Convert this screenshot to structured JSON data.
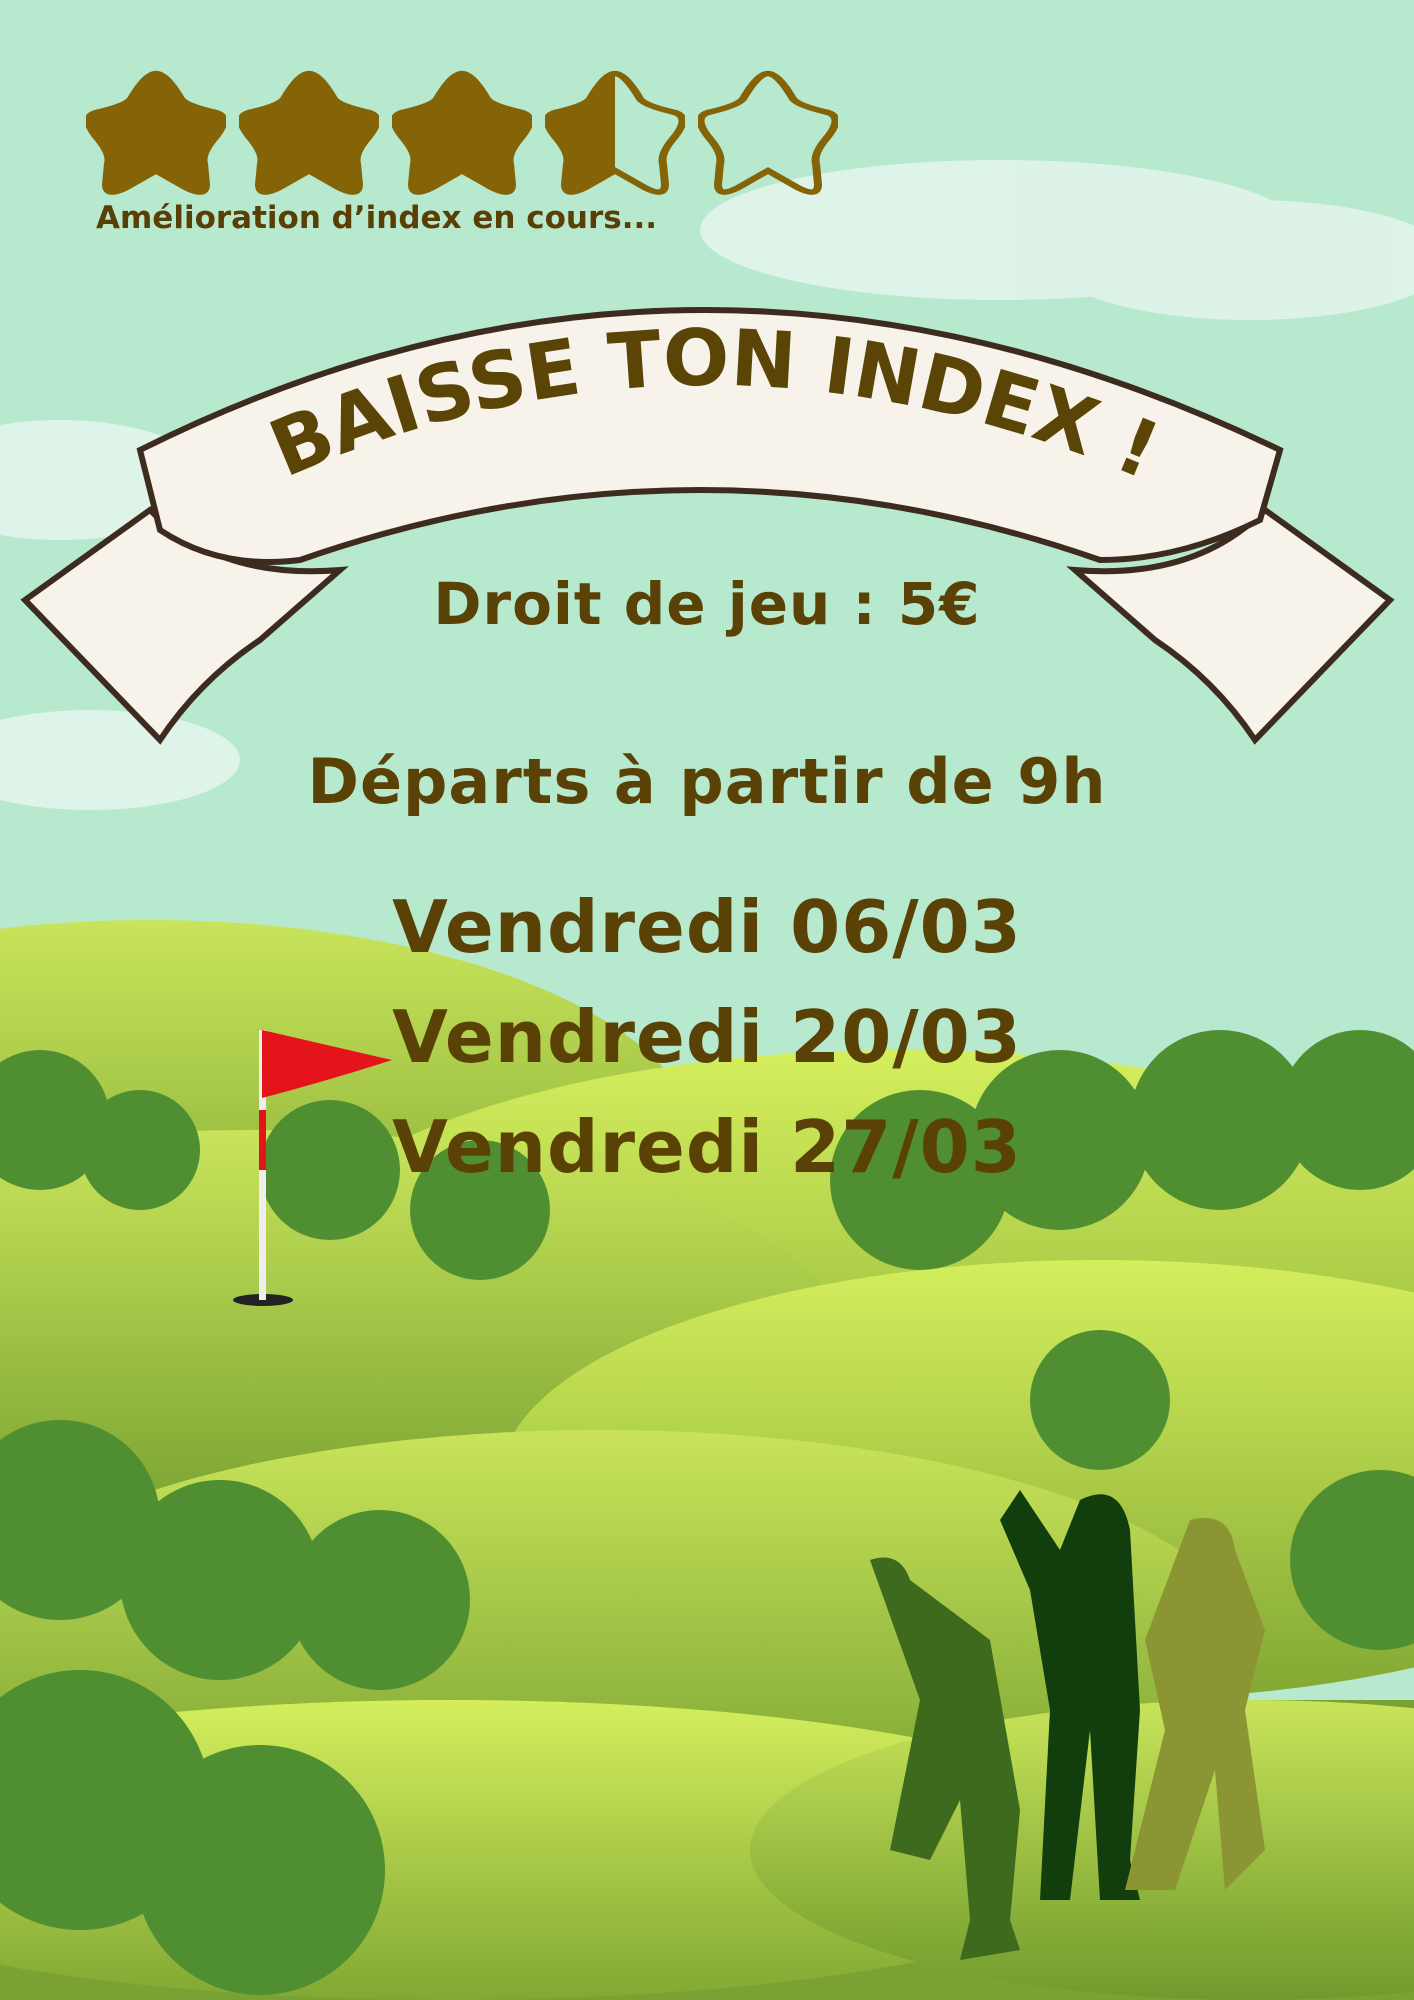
{
  "rating": {
    "value": 3.5,
    "max": 5,
    "caption": "Amélioration d’index en cours...",
    "color": "#846406"
  },
  "banner": {
    "title": "BAISSE TON INDEX !",
    "subtitle": "Droit de jeu : 5€"
  },
  "departures": "Départs à partir de 9h",
  "dates": [
    "Vendredi 06/03",
    "Vendredi 20/03",
    "Vendredi 27/03"
  ],
  "colors": {
    "sky": "#b7e9cf",
    "text": "#5a4207",
    "banner": "#f7f3ea",
    "flag": "#e5141b"
  }
}
